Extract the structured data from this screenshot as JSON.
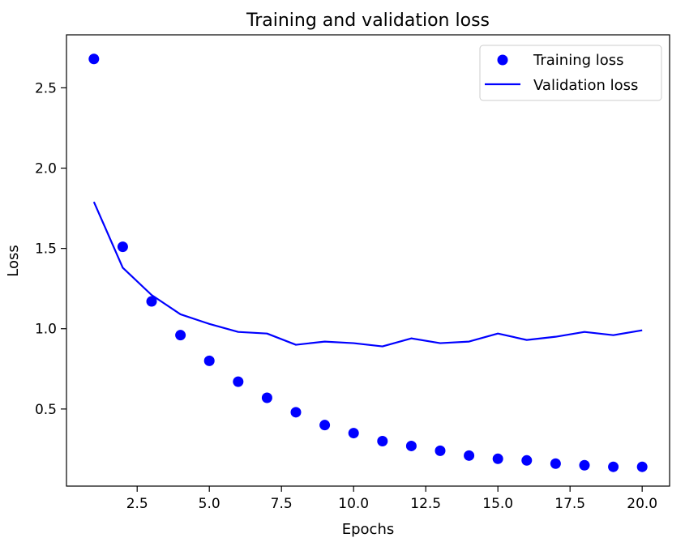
{
  "chart_data": {
    "type": "line",
    "title": "Training and validation loss",
    "xlabel": "Epochs",
    "ylabel": "Loss",
    "xlim": [
      0.05,
      20.95
    ],
    "ylim": [
      0.02,
      2.83
    ],
    "xticks": [
      2.5,
      5.0,
      7.5,
      10.0,
      12.5,
      15.0,
      17.5,
      20.0
    ],
    "xtick_labels": [
      "2.5",
      "5.0",
      "7.5",
      "10.0",
      "12.5",
      "15.0",
      "17.5",
      "20.0"
    ],
    "yticks": [
      0.5,
      1.0,
      1.5,
      2.0,
      2.5
    ],
    "ytick_labels": [
      "0.5",
      "1.0",
      "1.5",
      "2.0",
      "2.5"
    ],
    "grid": false,
    "legend_position": "top-right",
    "x": [
      1,
      2,
      3,
      4,
      5,
      6,
      7,
      8,
      9,
      10,
      11,
      12,
      13,
      14,
      15,
      16,
      17,
      18,
      19,
      20
    ],
    "series": [
      {
        "name": "Training loss",
        "style": "markers",
        "color": "#0000ff",
        "values": [
          2.68,
          1.51,
          1.17,
          0.96,
          0.8,
          0.67,
          0.57,
          0.48,
          0.4,
          0.35,
          0.3,
          0.27,
          0.24,
          0.21,
          0.19,
          0.18,
          0.16,
          0.15,
          0.14,
          0.14
        ]
      },
      {
        "name": "Validation loss",
        "style": "line",
        "color": "#0000ff",
        "values": [
          1.79,
          1.38,
          1.21,
          1.09,
          1.03,
          0.98,
          0.97,
          0.9,
          0.92,
          0.91,
          0.89,
          0.94,
          0.91,
          0.92,
          0.97,
          0.93,
          0.95,
          0.98,
          0.96,
          0.99
        ]
      }
    ]
  }
}
